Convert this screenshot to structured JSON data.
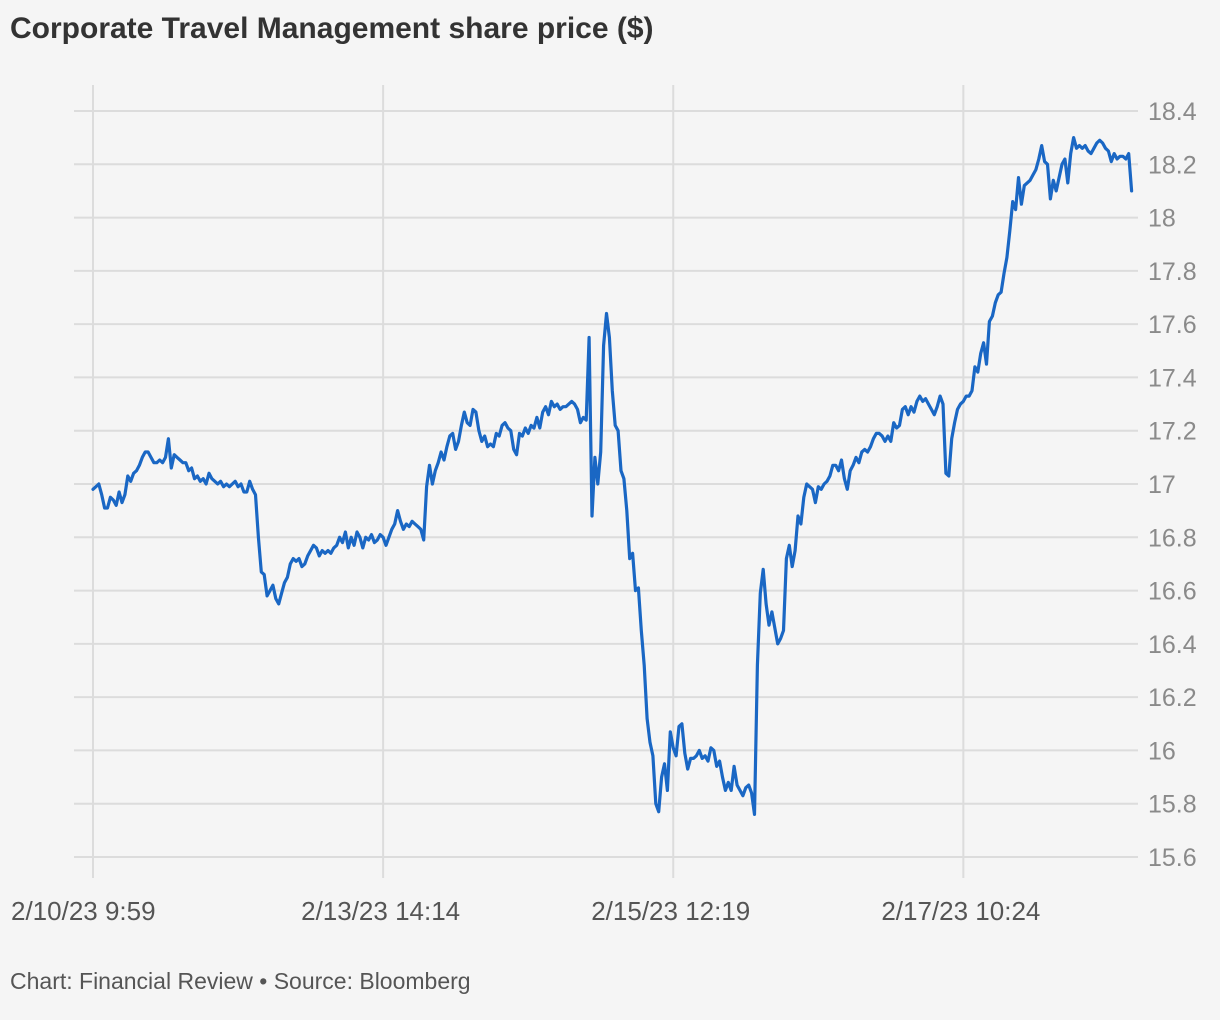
{
  "chart_data": {
    "type": "line",
    "title": "Corporate Travel Management share price ($)",
    "source": "Chart: Financial Review • Source: Bloomberg",
    "line_color": "#1a67c4",
    "ylim": [
      15.6,
      18.4
    ],
    "yticks": [
      {
        "value": 18.4,
        "label": "18.4"
      },
      {
        "value": 18.2,
        "label": "18.2"
      },
      {
        "value": 18.0,
        "label": "18"
      },
      {
        "value": 17.8,
        "label": "17.8"
      },
      {
        "value": 17.6,
        "label": "17.6"
      },
      {
        "value": 17.4,
        "label": "17.4"
      },
      {
        "value": 17.2,
        "label": "17.2"
      },
      {
        "value": 17.0,
        "label": "17"
      },
      {
        "value": 16.8,
        "label": "16.8"
      },
      {
        "value": 16.6,
        "label": "16.6"
      },
      {
        "value": 16.4,
        "label": "16.4"
      },
      {
        "value": 16.2,
        "label": "16.2"
      },
      {
        "value": 16.0,
        "label": "16"
      },
      {
        "value": 15.8,
        "label": "15.8"
      },
      {
        "value": 15.6,
        "label": "15.6"
      }
    ],
    "xticks": [
      {
        "index": 0,
        "label": "2/10/23 9:59"
      },
      {
        "index": 100,
        "label": "2/13/23 14:14"
      },
      {
        "index": 200,
        "label": "2/15/23 12:19"
      },
      {
        "index": 300,
        "label": "2/17/23 10:24"
      }
    ],
    "x_index_range": [
      0,
      354
    ],
    "values": [
      16.98,
      16.99,
      17.0,
      16.96,
      16.91,
      16.91,
      16.95,
      16.94,
      16.92,
      16.97,
      16.93,
      16.96,
      17.03,
      17.01,
      17.04,
      17.05,
      17.07,
      17.1,
      17.12,
      17.12,
      17.1,
      17.08,
      17.08,
      17.09,
      17.08,
      17.1,
      17.17,
      17.06,
      17.11,
      17.1,
      17.09,
      17.08,
      17.08,
      17.05,
      17.06,
      17.02,
      17.03,
      17.01,
      17.02,
      17.0,
      17.04,
      17.02,
      17.01,
      17.0,
      17.01,
      16.99,
      17.0,
      16.99,
      17.0,
      17.01,
      16.99,
      17.0,
      16.97,
      16.97,
      17.01,
      16.98,
      16.96,
      16.8,
      16.67,
      16.66,
      16.58,
      16.6,
      16.62,
      16.57,
      16.55,
      16.59,
      16.63,
      16.65,
      16.7,
      16.72,
      16.71,
      16.72,
      16.69,
      16.7,
      16.73,
      16.75,
      16.77,
      16.76,
      16.73,
      16.75,
      16.74,
      16.75,
      16.74,
      16.76,
      16.77,
      16.8,
      16.78,
      16.82,
      16.76,
      16.8,
      16.77,
      16.82,
      16.8,
      16.76,
      16.8,
      16.79,
      16.81,
      16.78,
      16.79,
      16.81,
      16.8,
      16.77,
      16.8,
      16.83,
      16.85,
      16.9,
      16.86,
      16.83,
      16.85,
      16.84,
      16.86,
      16.85,
      16.84,
      16.83,
      16.79,
      16.99,
      17.07,
      17.0,
      17.05,
      17.08,
      17.12,
      17.09,
      17.14,
      17.18,
      17.19,
      17.13,
      17.16,
      17.22,
      17.27,
      17.23,
      17.22,
      17.28,
      17.27,
      17.2,
      17.16,
      17.18,
      17.14,
      17.15,
      17.14,
      17.19,
      17.18,
      17.22,
      17.23,
      17.21,
      17.2,
      17.13,
      17.11,
      17.19,
      17.18,
      17.21,
      17.19,
      17.22,
      17.21,
      17.25,
      17.21,
      17.27,
      17.29,
      17.26,
      17.31,
      17.29,
      17.3,
      17.28,
      17.29,
      17.29,
      17.3,
      17.31,
      17.3,
      17.28,
      17.23,
      17.25,
      17.24,
      17.55,
      16.88,
      17.1,
      17.0,
      17.12,
      17.52,
      17.64,
      17.55,
      17.35,
      17.22,
      17.2,
      17.05,
      17.02,
      16.9,
      16.72,
      16.74,
      16.6,
      16.61,
      16.45,
      16.32,
      16.12,
      16.03,
      15.98,
      15.8,
      15.77,
      15.9,
      15.95,
      15.85,
      16.07,
      16.01,
      15.98,
      16.09,
      16.1,
      15.99,
      15.93,
      15.97,
      15.97,
      15.98,
      16.0,
      15.97,
      15.98,
      15.96,
      16.01,
      16.0,
      15.94,
      15.96,
      15.9,
      15.85,
      15.88,
      15.85,
      15.94,
      15.87,
      15.85,
      15.83,
      15.86,
      15.87,
      15.84,
      15.76,
      16.32,
      16.59,
      16.68,
      16.55,
      16.47,
      16.52,
      16.46,
      16.4,
      16.42,
      16.45,
      16.72,
      16.77,
      16.69,
      16.75,
      16.88,
      16.85,
      16.95,
      17.0,
      16.99,
      16.98,
      16.93,
      16.99,
      16.98,
      17.0,
      17.01,
      17.03,
      17.07,
      17.07,
      17.05,
      17.09,
      17.02,
      16.98,
      17.05,
      17.07,
      17.1,
      17.08,
      17.12,
      17.13,
      17.12,
      17.14,
      17.17,
      17.19,
      17.19,
      17.18,
      17.16,
      17.18,
      17.16,
      17.23,
      17.21,
      17.22,
      17.28,
      17.29,
      17.26,
      17.29,
      17.27,
      17.31,
      17.33,
      17.31,
      17.32,
      17.3,
      17.28,
      17.26,
      17.29,
      17.33,
      17.3,
      17.04,
      17.03,
      17.17,
      17.23,
      17.28,
      17.3,
      17.31,
      17.33,
      17.33,
      17.35,
      17.44,
      17.42,
      17.49,
      17.53,
      17.45,
      17.61,
      17.63,
      17.68,
      17.71,
      17.72,
      17.79,
      17.85,
      17.95,
      18.06,
      18.03,
      18.15,
      18.05,
      18.12,
      18.13,
      18.14,
      18.16,
      18.18,
      18.22,
      18.27,
      18.21,
      18.2,
      18.07,
      18.14,
      18.1,
      18.15,
      18.2,
      18.22,
      18.13,
      18.24,
      18.3,
      18.26,
      18.27,
      18.26,
      18.27,
      18.25,
      18.24,
      18.26,
      18.28,
      18.29,
      18.28,
      18.26,
      18.25,
      18.21,
      18.24,
      18.22,
      18.23,
      18.23,
      18.22,
      18.24,
      18.1
    ]
  }
}
